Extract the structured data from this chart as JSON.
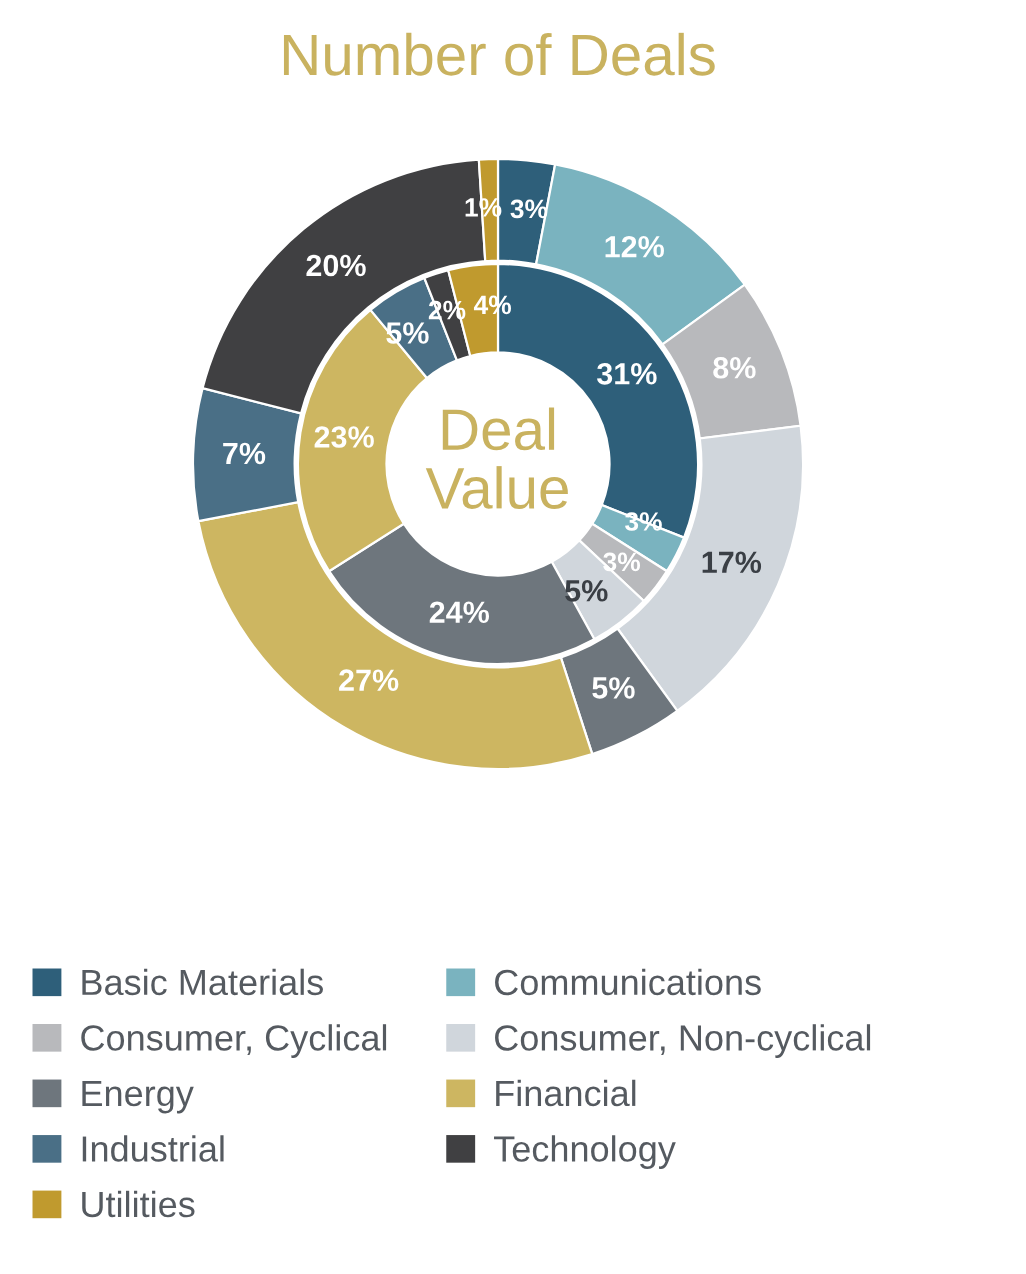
{
  "chart_data": {
    "type": "donut",
    "title": "Number of Deals",
    "annotations": [
      "Deal Value"
    ],
    "categories": [
      "Basic Materials",
      "Communications",
      "Consumer, Cyclical",
      "Consumer, Non-cyclical",
      "Energy",
      "Financial",
      "Industrial",
      "Technology",
      "Utilities"
    ],
    "colors": [
      "#2e5f7a",
      "#7ab3bf",
      "#b8b9bc",
      "#d0d6dc",
      "#6e767d",
      "#cdb661",
      "#4a6f86",
      "#404042",
      "#c09a2e"
    ],
    "series": [
      {
        "values": [
          3,
          12,
          8,
          17,
          5,
          27,
          7,
          20,
          1
        ],
        "value_labels": [
          "3%",
          "12%",
          "8%",
          "17%",
          "5%",
          "27%",
          "7%",
          "20%",
          "1%"
        ]
      },
      {
        "values": [
          31,
          3,
          3,
          5,
          24,
          23,
          5,
          2,
          4
        ],
        "value_labels": [
          "31%",
          "3%",
          "3%",
          "5%",
          "24%",
          "23%",
          "5%",
          "2%",
          "4%"
        ]
      }
    ],
    "legend": "bottom"
  }
}
